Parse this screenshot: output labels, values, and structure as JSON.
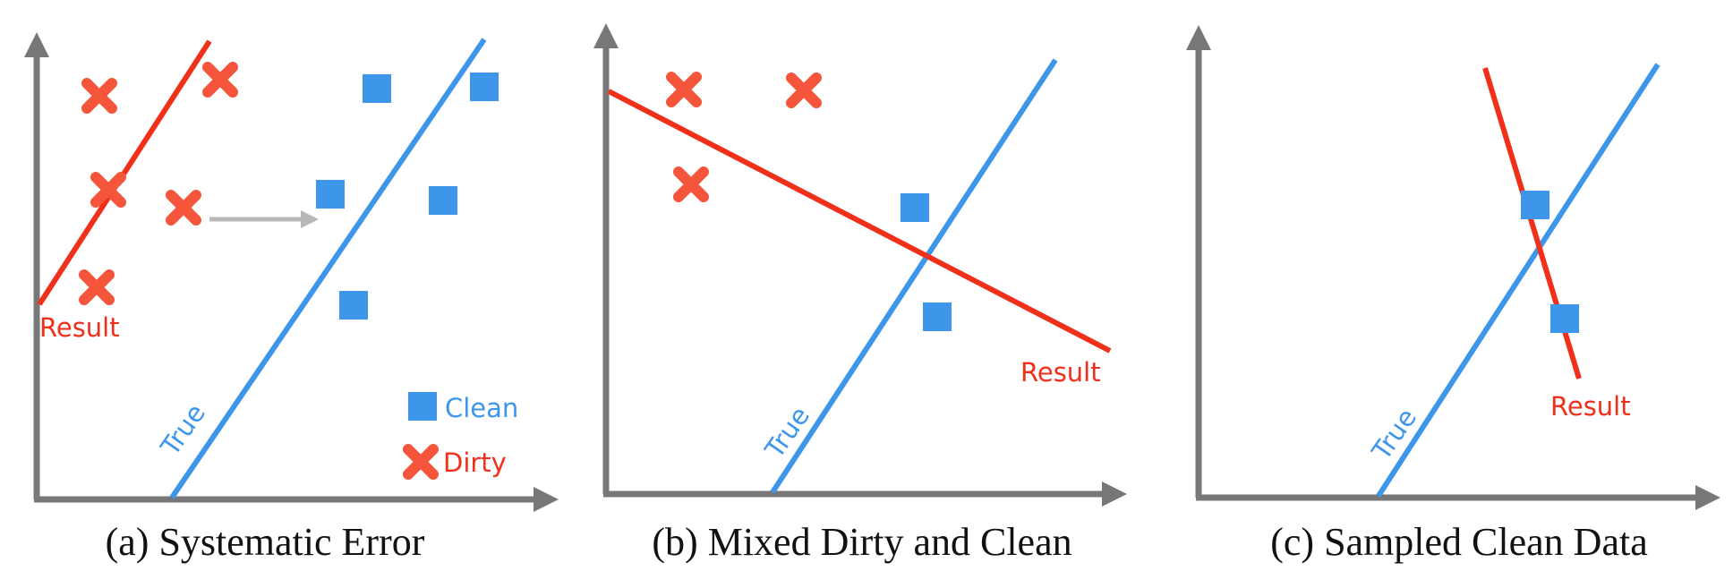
{
  "colors": {
    "axis": "#777777",
    "true_line": "#3d96ea",
    "result_line": "#f0301a",
    "clean_marker": "#3d96ea",
    "dirty_marker": "#f4553b",
    "arrow": "#b8b8b8"
  },
  "panels": [
    {
      "id": "a",
      "caption": "(a) Systematic Error",
      "true_label": "True",
      "result_label": "Result",
      "legend": {
        "clean": "Clean",
        "dirty": "Dirty"
      }
    },
    {
      "id": "b",
      "caption": "(b) Mixed Dirty and Clean",
      "true_label": "True",
      "result_label": "Result"
    },
    {
      "id": "c",
      "caption": "(c) Sampled Clean Data",
      "true_label": "True",
      "result_label": "Result"
    }
  ]
}
